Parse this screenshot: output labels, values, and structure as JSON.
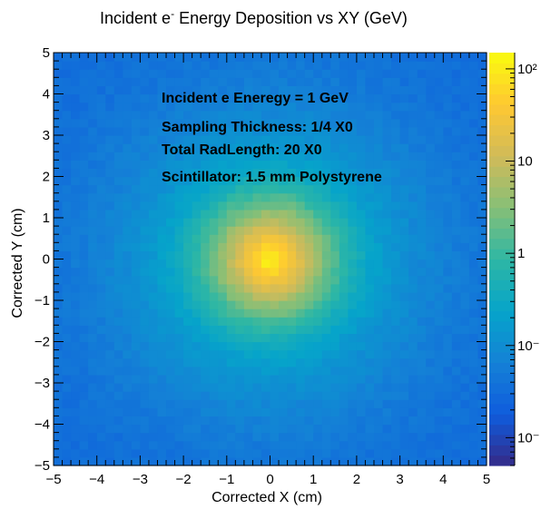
{
  "chart_data": {
    "type": "heatmap",
    "title_main": "Incident e",
    "title_sup": "-",
    "title_rest": " Energy Deposition vs XY (GeV)",
    "xlabel": "Corrected X (cm)",
    "ylabel": "Corrected Y (cm)",
    "xlim": [
      -5,
      5
    ],
    "ylim": [
      -5,
      5
    ],
    "x_ticks": [
      "−5",
      "−4",
      "−3",
      "−2",
      "−1",
      "0",
      "1",
      "2",
      "3",
      "4",
      "5"
    ],
    "y_ticks": [
      "−5",
      "−4",
      "−3",
      "−2",
      "−1",
      "0",
      "1",
      "2",
      "3",
      "4",
      "5"
    ],
    "bins_x": 50,
    "bins_y": 50,
    "z_scale": "log",
    "zlim": [
      0.005,
      150
    ],
    "peak_value": 150,
    "background_value": 0.03,
    "colorbar_ticks": [
      {
        "value": 0.01,
        "label": "10⁻"
      },
      {
        "value": 0.1,
        "label": "10⁻"
      },
      {
        "value": 1,
        "label": "1"
      },
      {
        "value": 10,
        "label": "10"
      },
      {
        "value": 100,
        "label": "10²"
      }
    ],
    "colormap": [
      "#352a87",
      "#0f5cdd",
      "#1481d6",
      "#06a4ca",
      "#2eb7a4",
      "#87bf77",
      "#d1bb59",
      "#fec832",
      "#f9fb0e"
    ],
    "annotations": [
      "Incident e Eneregy = 1 GeV",
      "Sampling Thickness: 1/4 X0",
      "Total RadLength: 20 X0",
      "Scintillator: 1.5 mm Polystyrene"
    ]
  }
}
